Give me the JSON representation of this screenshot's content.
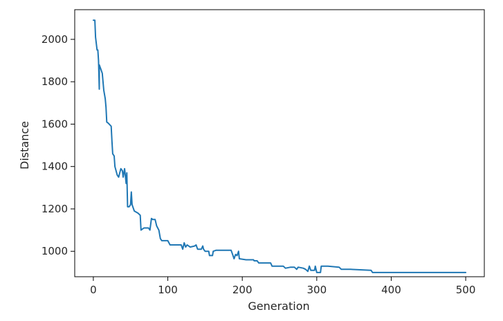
{
  "chart_data": {
    "type": "line",
    "title": "",
    "xlabel": "Generation",
    "ylabel": "Distance",
    "xlim": [
      -25,
      525
    ],
    "ylim": [
      880,
      2140
    ],
    "xticks": [
      0,
      100,
      200,
      300,
      400,
      500
    ],
    "yticks": [
      1000,
      1200,
      1400,
      1600,
      1800,
      2000
    ],
    "grid": false,
    "series": [
      {
        "color": "#1f77b4",
        "points": [
          [
            0,
            2090
          ],
          [
            2,
            2090
          ],
          [
            3,
            2010
          ],
          [
            5,
            1950
          ],
          [
            6,
            1950
          ],
          [
            7,
            1900
          ],
          [
            8,
            1765
          ],
          [
            8,
            1880
          ],
          [
            10,
            1860
          ],
          [
            12,
            1840
          ],
          [
            14,
            1760
          ],
          [
            16,
            1720
          ],
          [
            17,
            1680
          ],
          [
            18,
            1610
          ],
          [
            20,
            1605
          ],
          [
            24,
            1590
          ],
          [
            25,
            1520
          ],
          [
            26,
            1460
          ],
          [
            28,
            1450
          ],
          [
            29,
            1400
          ],
          [
            32,
            1360
          ],
          [
            34,
            1350
          ],
          [
            37,
            1390
          ],
          [
            39,
            1380
          ],
          [
            40,
            1350
          ],
          [
            42,
            1390
          ],
          [
            44,
            1320
          ],
          [
            45,
            1370
          ],
          [
            46,
            1210
          ],
          [
            48,
            1210
          ],
          [
            50,
            1220
          ],
          [
            51,
            1280
          ],
          [
            52,
            1220
          ],
          [
            55,
            1190
          ],
          [
            60,
            1180
          ],
          [
            63,
            1170
          ],
          [
            64,
            1100
          ],
          [
            68,
            1110
          ],
          [
            74,
            1110
          ],
          [
            76,
            1100
          ],
          [
            78,
            1155
          ],
          [
            80,
            1150
          ],
          [
            83,
            1150
          ],
          [
            85,
            1120
          ],
          [
            88,
            1100
          ],
          [
            90,
            1060
          ],
          [
            92,
            1050
          ],
          [
            100,
            1050
          ],
          [
            103,
            1030
          ],
          [
            110,
            1030
          ],
          [
            118,
            1030
          ],
          [
            120,
            1010
          ],
          [
            122,
            1040
          ],
          [
            124,
            1020
          ],
          [
            126,
            1030
          ],
          [
            130,
            1020
          ],
          [
            136,
            1025
          ],
          [
            138,
            1030
          ],
          [
            140,
            1010
          ],
          [
            145,
            1010
          ],
          [
            147,
            1025
          ],
          [
            148,
            1010
          ],
          [
            150,
            1000
          ],
          [
            155,
            1000
          ],
          [
            156,
            980
          ],
          [
            160,
            980
          ],
          [
            161,
            1000
          ],
          [
            165,
            1005
          ],
          [
            170,
            1005
          ],
          [
            185,
            1005
          ],
          [
            187,
            985
          ],
          [
            189,
            965
          ],
          [
            191,
            985
          ],
          [
            193,
            980
          ],
          [
            195,
            1000
          ],
          [
            196,
            965
          ],
          [
            205,
            960
          ],
          [
            215,
            960
          ],
          [
            216,
            955
          ],
          [
            220,
            955
          ],
          [
            222,
            945
          ],
          [
            238,
            945
          ],
          [
            240,
            930
          ],
          [
            255,
            930
          ],
          [
            258,
            920
          ],
          [
            265,
            925
          ],
          [
            270,
            925
          ],
          [
            273,
            915
          ],
          [
            275,
            925
          ],
          [
            282,
            920
          ],
          [
            285,
            915
          ],
          [
            288,
            905
          ],
          [
            290,
            930
          ],
          [
            292,
            910
          ],
          [
            295,
            910
          ],
          [
            297,
            910
          ],
          [
            298,
            930
          ],
          [
            300,
            900
          ],
          [
            305,
            900
          ],
          [
            306,
            930
          ],
          [
            315,
            930
          ],
          [
            330,
            925
          ],
          [
            333,
            915
          ],
          [
            345,
            915
          ],
          [
            373,
            910
          ],
          [
            375,
            900
          ],
          [
            400,
            900
          ],
          [
            500,
            900
          ]
        ]
      }
    ]
  }
}
